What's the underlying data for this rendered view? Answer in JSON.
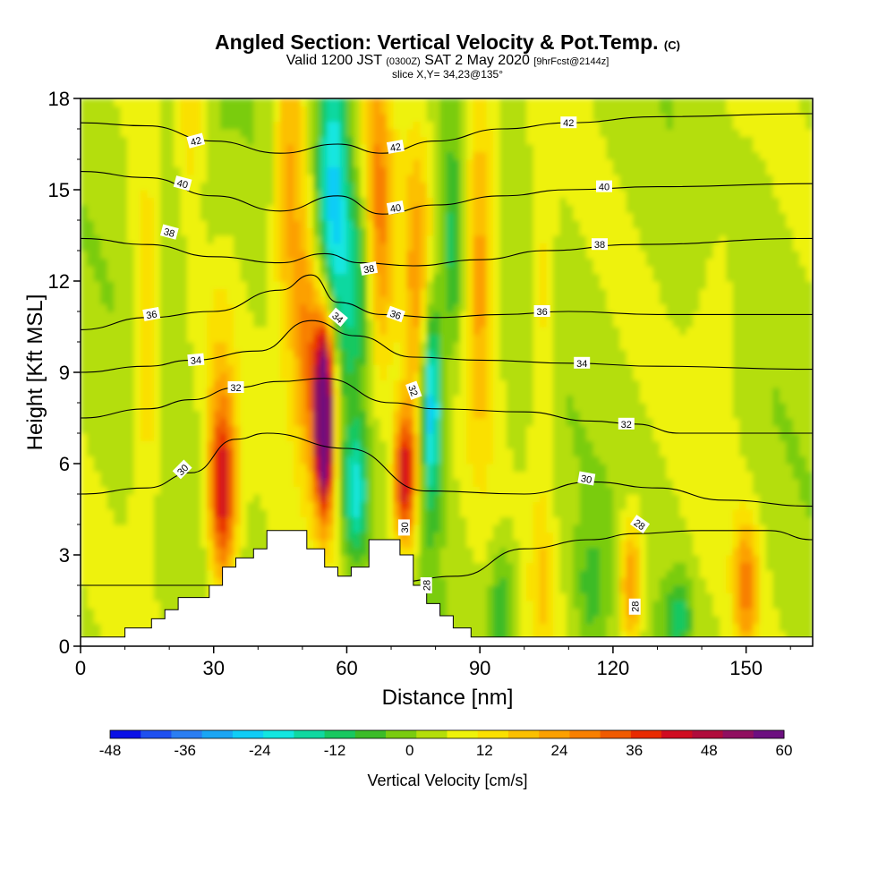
{
  "header": {
    "title_main": "Angled Section: Vertical Velocity & Pot.Temp.",
    "title_units": "(C)",
    "line2_a": "Valid 1200 JST",
    "line2_b": "(0300Z)",
    "line2_c": "SAT 2 May 2020",
    "line2_d": "[9hrFcst@2144z]",
    "line3": "slice X,Y= 34,23@135°"
  },
  "chart_data": {
    "type": "heatmap",
    "title": "Angled Section: Vertical Velocity & Pot.Temp. (C)",
    "xlabel": "Distance [nm]",
    "ylabel": "Height [Kft MSL]",
    "xlim": [
      0,
      165
    ],
    "ylim": [
      0,
      18
    ],
    "xticks": [
      0,
      30,
      60,
      90,
      120,
      150
    ],
    "yticks": [
      0,
      3,
      6,
      9,
      12,
      15,
      18
    ],
    "colorbar": {
      "label": "Vertical Velocity [cm/s]",
      "ticks": [
        -48,
        -36,
        -24,
        -12,
        0,
        12,
        24,
        36,
        48,
        60
      ],
      "range": [
        -48,
        60
      ],
      "colors": [
        "#0a10e6",
        "#1e50f0",
        "#2a7ef2",
        "#1aa6f4",
        "#10cdf6",
        "#12e6e0",
        "#10d8a0",
        "#18c860",
        "#3cbc28",
        "#7acc10",
        "#b4de0a",
        "#eef20a",
        "#fae000",
        "#fcc000",
        "#fca000",
        "#f88000",
        "#f05a00",
        "#e82a00",
        "#d00c20",
        "#b00c3c",
        "#901060",
        "#6c1080"
      ]
    },
    "terrain": [
      [
        0,
        0.3
      ],
      [
        10,
        0.3
      ],
      [
        10,
        0.6
      ],
      [
        16,
        0.6
      ],
      [
        16,
        0.9
      ],
      [
        19,
        0.9
      ],
      [
        19,
        1.2
      ],
      [
        22,
        1.2
      ],
      [
        22,
        1.6
      ],
      [
        29,
        1.6
      ],
      [
        29,
        2
      ],
      [
        32,
        2
      ],
      [
        32,
        2.6
      ],
      [
        35,
        2.6
      ],
      [
        35,
        2.9
      ],
      [
        39,
        2.9
      ],
      [
        39,
        3.2
      ],
      [
        42,
        3.2
      ],
      [
        42,
        3.8
      ],
      [
        51,
        3.8
      ],
      [
        51,
        3.2
      ],
      [
        55,
        3.2
      ],
      [
        55,
        2.6
      ],
      [
        58,
        2.6
      ],
      [
        58,
        2.3
      ],
      [
        61,
        2.3
      ],
      [
        61,
        2.6
      ],
      [
        65,
        2.6
      ],
      [
        65,
        3.5
      ],
      [
        72,
        3.5
      ],
      [
        72,
        3
      ],
      [
        75,
        3
      ],
      [
        75,
        2
      ],
      [
        78,
        2
      ],
      [
        78,
        1.4
      ],
      [
        81,
        1.4
      ],
      [
        81,
        1
      ],
      [
        84,
        1
      ],
      [
        84,
        0.6
      ],
      [
        88,
        0.6
      ],
      [
        88,
        0.3
      ],
      [
        165,
        0.3
      ]
    ],
    "features": [
      {
        "x": 15,
        "z": 10,
        "sx": 2.5,
        "sz": 4,
        "value": 14
      },
      {
        "x": 25,
        "z": 17,
        "sx": 2.5,
        "sz": 4.5,
        "value": 14
      },
      {
        "x": 32,
        "z": 5,
        "sx": 2.2,
        "sz": 2.2,
        "value": 40
      },
      {
        "x": 31,
        "z": 10,
        "sx": 3,
        "sz": 3,
        "value": 8
      },
      {
        "x": 25,
        "z": 14,
        "sx": 5,
        "sz": 3,
        "value": -10
      },
      {
        "x": 47,
        "z": 15,
        "sx": 2.5,
        "sz": 4,
        "value": 20
      },
      {
        "x": 51,
        "z": 10,
        "sx": 2,
        "sz": 3,
        "value": 22
      },
      {
        "x": 55,
        "z": 7,
        "sx": 1.6,
        "sz": 2,
        "value": 60
      },
      {
        "x": 55,
        "z": 9.5,
        "sx": 1.8,
        "sz": 2,
        "value": 30
      },
      {
        "x": 57,
        "z": 15,
        "sx": 2.6,
        "sz": 4,
        "value": -30
      },
      {
        "x": 63,
        "z": 12,
        "sx": 2.5,
        "sz": 2.5,
        "value": -18
      },
      {
        "x": 62,
        "z": 5,
        "sx": 2,
        "sz": 1.6,
        "value": -24
      },
      {
        "x": 67,
        "z": 14,
        "sx": 2.5,
        "sz": 4,
        "value": 24
      },
      {
        "x": 73,
        "z": 5.5,
        "sx": 1.8,
        "sz": 1.6,
        "value": 42
      },
      {
        "x": 76,
        "z": 12,
        "sx": 2.4,
        "sz": 4,
        "value": 18
      },
      {
        "x": 79,
        "z": 8,
        "sx": 1.6,
        "sz": 2.5,
        "value": -36
      },
      {
        "x": 84,
        "z": 13,
        "sx": 2,
        "sz": 2.5,
        "value": -16
      },
      {
        "x": 90,
        "z": 13,
        "sx": 2.6,
        "sz": 4.5,
        "value": 20
      },
      {
        "x": 95,
        "z": 1.3,
        "sx": 2,
        "sz": 1.4,
        "value": -14
      },
      {
        "x": 104,
        "z": 11,
        "sx": 2,
        "sz": 4,
        "value": 10
      },
      {
        "x": 104,
        "z": 2,
        "sx": 2,
        "sz": 2,
        "value": 10
      },
      {
        "x": 115,
        "z": 1.8,
        "sx": 2.5,
        "sz": 1.5,
        "value": -10
      },
      {
        "x": 124,
        "z": 2,
        "sx": 1.8,
        "sz": 1.6,
        "value": 24
      },
      {
        "x": 135,
        "z": 1,
        "sx": 2,
        "sz": 1,
        "value": -14
      },
      {
        "x": 150,
        "z": 2,
        "sx": 2,
        "sz": 1.6,
        "value": 22
      },
      {
        "x": 144,
        "z": 11,
        "sx": 4,
        "sz": 4,
        "value": 6
      }
    ],
    "contours": [
      {
        "value": 28,
        "label": "28",
        "pts": [
          [
            0,
            2
          ],
          [
            40,
            2
          ],
          [
            70,
            2.1
          ],
          [
            85,
            2.3
          ],
          [
            100,
            3.2
          ],
          [
            115,
            3.5
          ],
          [
            125,
            3.7
          ],
          [
            140,
            3.8
          ],
          [
            155,
            3.8
          ],
          [
            165,
            3.5
          ]
        ]
      },
      {
        "value": 30,
        "label": "30",
        "pts": [
          [
            0,
            5
          ],
          [
            15,
            5.2
          ],
          [
            25,
            5.7
          ],
          [
            35,
            6.8
          ],
          [
            42,
            7
          ],
          [
            60,
            6.5
          ],
          [
            78,
            5.1
          ],
          [
            100,
            5
          ],
          [
            115,
            5.4
          ],
          [
            130,
            5.2
          ],
          [
            145,
            4.8
          ],
          [
            165,
            4.6
          ]
        ]
      },
      {
        "value": 32,
        "label": "32",
        "pts": [
          [
            0,
            7.5
          ],
          [
            15,
            7.8
          ],
          [
            25,
            8.1
          ],
          [
            35,
            8.5
          ],
          [
            45,
            8.7
          ],
          [
            55,
            8.8
          ],
          [
            70,
            8
          ],
          [
            80,
            7.8
          ],
          [
            100,
            7.7
          ],
          [
            115,
            7.4
          ],
          [
            125,
            7.3
          ],
          [
            135,
            7
          ],
          [
            165,
            7
          ]
        ]
      },
      {
        "value": 34,
        "label": "34",
        "pts": [
          [
            0,
            9
          ],
          [
            15,
            9.2
          ],
          [
            25,
            9.4
          ],
          [
            40,
            9.7
          ],
          [
            52,
            10.7
          ],
          [
            62,
            10.2
          ],
          [
            75,
            9.5
          ],
          [
            90,
            9.4
          ],
          [
            110,
            9.3
          ],
          [
            130,
            9.2
          ],
          [
            165,
            9.1
          ]
        ]
      },
      {
        "value": 36,
        "label": "36",
        "pts": [
          [
            0,
            10.4
          ],
          [
            15,
            10.8
          ],
          [
            30,
            11
          ],
          [
            45,
            11.7
          ],
          [
            52,
            12.2
          ],
          [
            58,
            11.3
          ],
          [
            68,
            10.9
          ],
          [
            80,
            10.8
          ],
          [
            95,
            10.9
          ],
          [
            110,
            11
          ],
          [
            130,
            10.9
          ],
          [
            165,
            10.9
          ]
        ]
      },
      {
        "value": 38,
        "label": "38",
        "pts": [
          [
            0,
            13.4
          ],
          [
            15,
            13.2
          ],
          [
            30,
            12.8
          ],
          [
            45,
            12.6
          ],
          [
            55,
            12.9
          ],
          [
            63,
            12.6
          ],
          [
            75,
            12.5
          ],
          [
            90,
            12.7
          ],
          [
            105,
            13
          ],
          [
            125,
            13.2
          ],
          [
            165,
            13.4
          ]
        ]
      },
      {
        "value": 40,
        "label": "40",
        "pts": [
          [
            0,
            15.6
          ],
          [
            15,
            15.4
          ],
          [
            30,
            14.8
          ],
          [
            45,
            14.3
          ],
          [
            58,
            14.8
          ],
          [
            68,
            14.2
          ],
          [
            80,
            14.5
          ],
          [
            95,
            14.8
          ],
          [
            110,
            15
          ],
          [
            130,
            15.1
          ],
          [
            165,
            15.2
          ]
        ]
      },
      {
        "value": 42,
        "label": "42",
        "pts": [
          [
            0,
            17.2
          ],
          [
            15,
            17.1
          ],
          [
            30,
            16.6
          ],
          [
            45,
            16.2
          ],
          [
            58,
            16.5
          ],
          [
            68,
            16.2
          ],
          [
            80,
            16.6
          ],
          [
            95,
            17
          ],
          [
            110,
            17.2
          ],
          [
            130,
            17.4
          ],
          [
            165,
            17.5
          ]
        ]
      }
    ],
    "contour_labels": [
      {
        "text": "42",
        "x": 26,
        "z": 16.6,
        "rot": -15
      },
      {
        "text": "42",
        "x": 71,
        "z": 16.4,
        "rot": -10
      },
      {
        "text": "42",
        "x": 110,
        "z": 17.2,
        "rot": 0
      },
      {
        "text": "40",
        "x": 23,
        "z": 15.2,
        "rot": 15
      },
      {
        "text": "40",
        "x": 71,
        "z": 14.4,
        "rot": -10
      },
      {
        "text": "40",
        "x": 118,
        "z": 15.1,
        "rot": 0
      },
      {
        "text": "38",
        "x": 20,
        "z": 13.6,
        "rot": 15
      },
      {
        "text": "38",
        "x": 65,
        "z": 12.4,
        "rot": -10
      },
      {
        "text": "38",
        "x": 117,
        "z": 13.2,
        "rot": 0
      },
      {
        "text": "36",
        "x": 16,
        "z": 10.9,
        "rot": -10
      },
      {
        "text": "36",
        "x": 71,
        "z": 10.9,
        "rot": 20
      },
      {
        "text": "36",
        "x": 104,
        "z": 11,
        "rot": 0
      },
      {
        "text": "34",
        "x": 58,
        "z": 10.8,
        "rot": 40
      },
      {
        "text": "34",
        "x": 26,
        "z": 9.4,
        "rot": -5
      },
      {
        "text": "34",
        "x": 113,
        "z": 9.3,
        "rot": 0
      },
      {
        "text": "32",
        "x": 35,
        "z": 8.5,
        "rot": 0
      },
      {
        "text": "32",
        "x": 75,
        "z": 8.4,
        "rot": 70
      },
      {
        "text": "32",
        "x": 123,
        "z": 7.3,
        "rot": 0
      },
      {
        "text": "30",
        "x": 23,
        "z": 5.8,
        "rot": -45
      },
      {
        "text": "30",
        "x": 73,
        "z": 3.9,
        "rot": -90
      },
      {
        "text": "30",
        "x": 114,
        "z": 5.5,
        "rot": 10
      },
      {
        "text": "28",
        "x": 126,
        "z": 4,
        "rot": 35
      },
      {
        "text": "28",
        "x": 78,
        "z": 2,
        "rot": -90
      },
      {
        "text": "28",
        "x": 125,
        "z": 1.3,
        "rot": -90
      }
    ]
  }
}
